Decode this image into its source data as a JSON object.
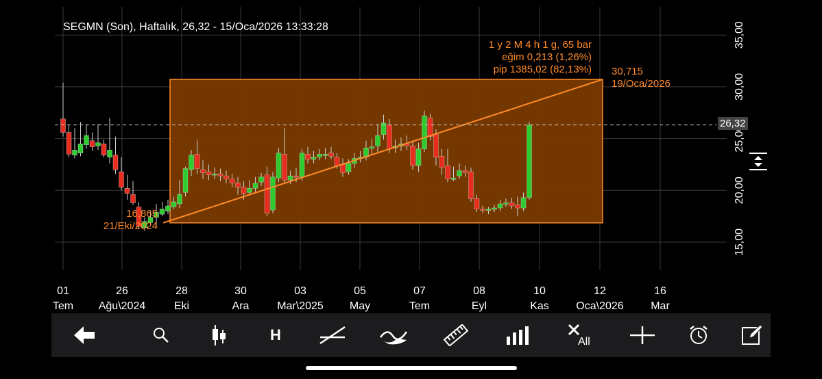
{
  "title": "SEGMN (Son), Haftalık, 26,32 - 15/Oca/2026 13:33:28",
  "current_price": "26,32",
  "annotations": {
    "range_line1": "1 y 2 M 4 h 1 g, 65 bar",
    "range_line2": "eğim 0,213 (1,26%)",
    "range_line3": "pip 1385,02 (82,13%)",
    "end_value": "30,715",
    "end_date": "19/Oca/2026",
    "start_value": "16,865",
    "start_date": "21/Eki/2024"
  },
  "colors": {
    "up": "#2ecc2e",
    "down": "#e82c1e",
    "accent": "#ff8a2a",
    "box_fill": "#7a3a00"
  },
  "chart_data": {
    "type": "candlestick",
    "y_axis": {
      "ticks": [
        "15,00",
        "20,00",
        "25,00",
        "30,00",
        "35,00"
      ],
      "ylim": [
        13.5,
        36.2
      ]
    },
    "x_axis": {
      "ticks": [
        {
          "top": "01",
          "bottom": "Tem"
        },
        {
          "top": "26",
          "bottom": "Ağu\\2024"
        },
        {
          "top": "28",
          "bottom": "Eki"
        },
        {
          "top": "30",
          "bottom": "Ara"
        },
        {
          "top": "03",
          "bottom": "Mar\\2025"
        },
        {
          "top": "05",
          "bottom": "May"
        },
        {
          "top": "07",
          "bottom": "Tem"
        },
        {
          "top": "08",
          "bottom": "Eyl"
        },
        {
          "top": "10",
          "bottom": "Kas"
        },
        {
          "top": "12",
          "bottom": "Oca\\2026"
        },
        {
          "top": "16",
          "bottom": "Mar"
        }
      ]
    },
    "candles": [
      [
        26.9,
        25.6,
        30.4,
        25.2
      ],
      [
        25.6,
        23.5,
        26.3,
        23.2
      ],
      [
        23.4,
        23.9,
        26.0,
        23.1
      ],
      [
        23.6,
        24.5,
        26.6,
        23.3
      ],
      [
        24.4,
        25.3,
        26.4,
        24.0
      ],
      [
        24.8,
        24.2,
        25.6,
        23.8
      ],
      [
        24.3,
        24.6,
        26.4,
        23.9
      ],
      [
        24.5,
        23.4,
        24.9,
        23.2
      ],
      [
        23.2,
        23.9,
        27.0,
        22.6
      ],
      [
        23.4,
        22.0,
        25.2,
        21.6
      ],
      [
        21.8,
        20.3,
        23.2,
        20.0
      ],
      [
        20.2,
        19.7,
        21.5,
        19.1
      ],
      [
        19.6,
        18.8,
        20.9,
        18.6
      ],
      [
        18.4,
        16.5,
        18.9,
        16.3
      ],
      [
        16.4,
        17.0,
        17.4,
        16.1
      ],
      [
        16.9,
        17.4,
        18.0,
        16.6
      ],
      [
        17.4,
        17.9,
        18.7,
        16.5
      ],
      [
        17.7,
        18.2,
        18.9,
        17.5
      ],
      [
        18.0,
        18.5,
        19.1,
        17.7
      ],
      [
        18.4,
        18.9,
        19.4,
        18.2
      ],
      [
        18.7,
        19.6,
        21.0,
        18.3
      ],
      [
        19.8,
        22.1,
        22.3,
        19.4
      ],
      [
        22.0,
        23.4,
        23.9,
        21.4
      ],
      [
        23.5,
        22.1,
        24.9,
        21.6
      ],
      [
        22.0,
        21.7,
        22.9,
        21.1
      ],
      [
        21.8,
        21.5,
        22.5,
        21.0
      ],
      [
        21.6,
        21.6,
        22.2,
        21.1
      ],
      [
        21.6,
        21.4,
        22.1,
        20.9
      ],
      [
        21.4,
        21.1,
        21.9,
        20.7
      ],
      [
        21.1,
        20.7,
        21.6,
        20.3
      ],
      [
        20.7,
        20.3,
        21.3,
        19.6
      ],
      [
        20.3,
        19.7,
        20.9,
        19.1
      ],
      [
        19.8,
        20.2,
        21.0,
        19.5
      ],
      [
        20.2,
        20.7,
        21.3,
        19.8
      ],
      [
        20.8,
        21.3,
        21.7,
        20.4
      ],
      [
        21.5,
        17.8,
        22.3,
        17.5
      ],
      [
        18.1,
        21.3,
        21.8,
        17.8
      ],
      [
        21.2,
        23.6,
        24.1,
        20.8
      ],
      [
        23.5,
        21.0,
        26.0,
        20.7
      ],
      [
        21.0,
        21.4,
        21.9,
        20.6
      ],
      [
        21.4,
        21.3,
        22.2,
        20.8
      ],
      [
        21.3,
        23.6,
        24.0,
        20.9
      ],
      [
        23.5,
        23.0,
        24.2,
        22.6
      ],
      [
        23.0,
        23.2,
        23.8,
        22.6
      ],
      [
        23.2,
        23.5,
        24.0,
        22.9
      ],
      [
        23.5,
        23.5,
        24.1,
        23.0
      ],
      [
        23.6,
        23.3,
        24.2,
        23.0
      ],
      [
        23.2,
        22.4,
        23.6,
        22.1
      ],
      [
        22.5,
        21.7,
        23.1,
        21.3
      ],
      [
        21.8,
        22.6,
        23.0,
        21.5
      ],
      [
        22.6,
        23.1,
        23.6,
        22.2
      ],
      [
        23.1,
        23.2,
        23.8,
        22.7
      ],
      [
        23.2,
        24.1,
        24.8,
        22.9
      ],
      [
        24.1,
        24.2,
        25.0,
        23.5
      ],
      [
        24.3,
        25.3,
        26.4,
        23.7
      ],
      [
        25.4,
        26.5,
        27.3,
        24.9
      ],
      [
        26.3,
        24.0,
        26.9,
        23.6
      ],
      [
        24.1,
        24.3,
        24.9,
        23.6
      ],
      [
        24.3,
        24.5,
        25.1,
        23.8
      ],
      [
        24.5,
        24.3,
        25.3,
        23.9
      ],
      [
        24.3,
        22.4,
        24.8,
        22.0
      ],
      [
        22.4,
        24.0,
        24.6,
        21.8
      ],
      [
        24.0,
        27.2,
        27.7,
        23.7
      ],
      [
        27.0,
        25.2,
        27.4,
        24.8
      ],
      [
        25.4,
        23.2,
        25.9,
        22.4
      ],
      [
        23.3,
        22.2,
        24.0,
        21.5
      ],
      [
        22.4,
        21.1,
        24.0,
        20.8
      ],
      [
        21.2,
        21.2,
        22.3,
        20.9
      ],
      [
        21.4,
        21.9,
        22.6,
        21.1
      ],
      [
        21.9,
        21.7,
        22.4,
        21.3
      ],
      [
        21.8,
        19.2,
        22.2,
        18.9
      ],
      [
        19.2,
        18.2,
        19.6,
        17.9
      ],
      [
        18.2,
        18.1,
        18.5,
        17.8
      ],
      [
        18.1,
        18.2,
        18.4,
        17.7
      ],
      [
        18.2,
        18.3,
        18.6,
        17.9
      ],
      [
        18.3,
        18.7,
        19.1,
        18.0
      ],
      [
        18.7,
        18.8,
        19.2,
        18.4
      ],
      [
        18.8,
        18.5,
        19.3,
        18.2
      ],
      [
        18.6,
        18.3,
        19.4,
        17.5
      ],
      [
        18.3,
        19.3,
        19.8,
        18.0
      ],
      [
        19.3,
        26.3,
        26.6,
        19.1
      ]
    ]
  },
  "toolbar": {
    "back": "back-arrow-icon",
    "search": "search-icon",
    "chart_type": "candlestick-icon",
    "horizontal_line": "H",
    "trend_line": "trend-line-icon",
    "indicators": "indicators-icon",
    "ruler": "ruler-icon",
    "volume": "volume-bars-icon",
    "clear_all": "All",
    "crosshair": "crosshair-icon",
    "alarm": "alarm-clock-icon",
    "edit": "edit-note-icon"
  }
}
